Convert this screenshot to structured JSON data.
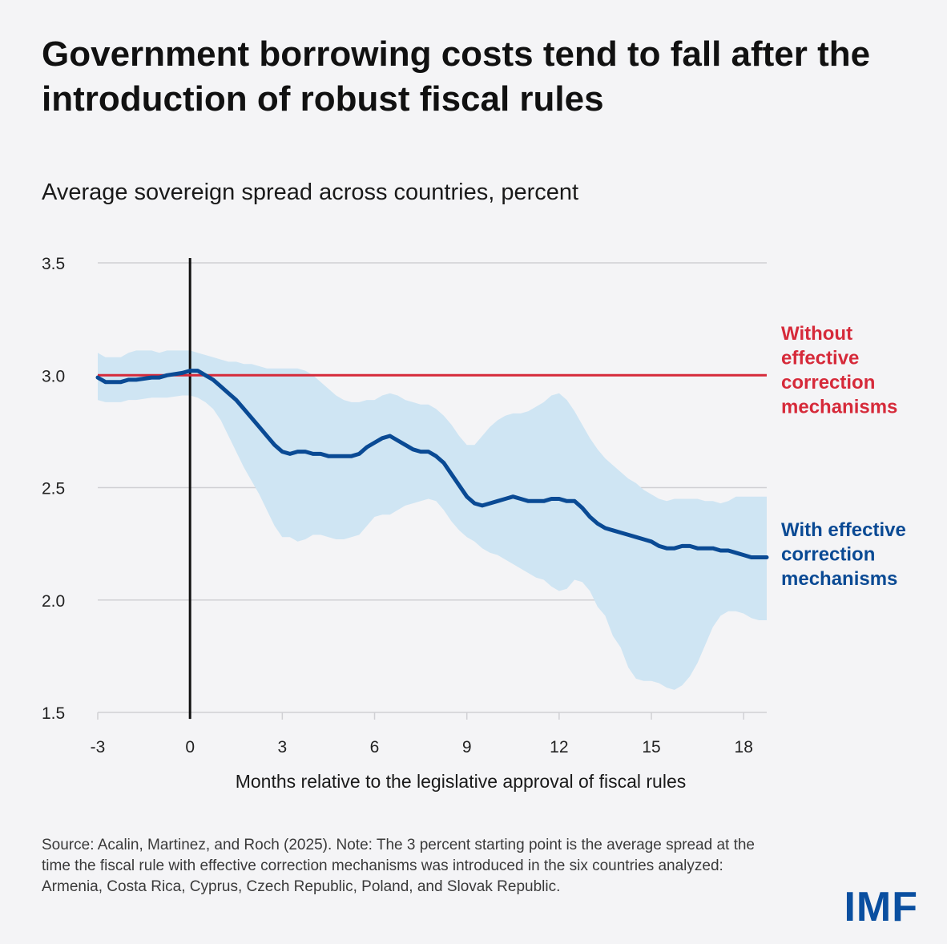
{
  "title": "Government borrowing costs tend to fall after the introduction of robust fiscal rules",
  "subtitle": "Average sovereign spread across countries, percent",
  "source": "Source: Acalin, Martinez, and Roch (2025).  Note: The 3 percent starting point is the average spread at the time the fiscal rule with effective correction mechanisms was introduced in the six countries analyzed: Armenia, Costa Rica, Cyprus, Czech Republic, Poland, and Slovak Republic.",
  "logo": "IMF",
  "colors": {
    "background": "#f4f4f6",
    "with_line": "#0a4a94",
    "band": "#cfe5f3",
    "without_line": "#d62a3a",
    "vline": "#111111",
    "grid": "#d0d0d4"
  },
  "chart_data": {
    "type": "line",
    "title": "Average sovereign spread across countries, percent",
    "xlabel": "Months relative to the legislative approval of fiscal rules",
    "ylabel": "",
    "xlim": [
      -3,
      18.75
    ],
    "ylim": [
      1.5,
      3.5
    ],
    "x_ticks": [
      -3,
      0,
      3,
      6,
      9,
      12,
      15,
      18
    ],
    "x_tick_labels": [
      "-3",
      "0",
      "3",
      "6",
      "9",
      "12",
      "15",
      "18"
    ],
    "y_ticks": [
      1.5,
      2.0,
      2.5,
      3.0,
      3.5
    ],
    "y_tick_labels": [
      "1.5",
      "2.0",
      "2.5",
      "3.0",
      "3.5"
    ],
    "vertical_line_x": 0,
    "series": [
      {
        "name": "Without effective correction mechanisms",
        "label_lines": [
          "Without",
          "effective",
          "correction",
          "mechanisms"
        ],
        "kind": "constant",
        "x": [
          -3,
          18.75
        ],
        "values": [
          3.0,
          3.0
        ]
      },
      {
        "name": "With effective correction mechanisms",
        "label_lines": [
          "With effective",
          "correction",
          "mechanisms"
        ],
        "kind": "line_with_band",
        "x": [
          -3,
          -2.75,
          -2.25,
          -2,
          -1.75,
          -1.25,
          -1,
          -0.75,
          -0.25,
          0,
          0.25,
          0.5,
          0.75,
          1,
          1.25,
          1.5,
          1.75,
          2,
          2.25,
          2.5,
          2.75,
          3,
          3.25,
          3.5,
          3.75,
          4,
          4.25,
          4.5,
          4.75,
          5,
          5.25,
          5.5,
          5.75,
          6,
          6.25,
          6.5,
          6.75,
          7,
          7.25,
          7.5,
          7.75,
          8,
          8.25,
          8.5,
          8.75,
          9,
          9.25,
          9.5,
          9.75,
          10,
          10.25,
          10.5,
          10.75,
          11,
          11.25,
          11.5,
          11.75,
          12,
          12.25,
          12.5,
          12.75,
          13,
          13.25,
          13.5,
          13.75,
          14,
          14.25,
          14.5,
          14.75,
          15,
          15.25,
          15.5,
          15.75,
          16,
          16.25,
          16.5,
          16.75,
          17,
          17.25,
          17.5,
          17.75,
          18,
          18.25,
          18.5,
          18.75
        ],
        "values": [
          2.99,
          2.97,
          2.97,
          2.98,
          2.98,
          2.99,
          2.99,
          3.0,
          3.01,
          3.02,
          3.02,
          3.0,
          2.98,
          2.95,
          2.92,
          2.89,
          2.85,
          2.81,
          2.77,
          2.73,
          2.69,
          2.66,
          2.65,
          2.66,
          2.66,
          2.65,
          2.65,
          2.64,
          2.64,
          2.64,
          2.64,
          2.65,
          2.68,
          2.7,
          2.72,
          2.73,
          2.71,
          2.69,
          2.67,
          2.66,
          2.66,
          2.64,
          2.61,
          2.56,
          2.51,
          2.46,
          2.43,
          2.42,
          2.43,
          2.44,
          2.45,
          2.46,
          2.45,
          2.44,
          2.44,
          2.44,
          2.45,
          2.45,
          2.44,
          2.44,
          2.41,
          2.37,
          2.34,
          2.32,
          2.31,
          2.3,
          2.29,
          2.28,
          2.27,
          2.26,
          2.24,
          2.23,
          2.23,
          2.24,
          2.24,
          2.23,
          2.23,
          2.23,
          2.22,
          2.22,
          2.21,
          2.2,
          2.19,
          2.19,
          2.19
        ],
        "upper": [
          3.1,
          3.08,
          3.08,
          3.1,
          3.11,
          3.11,
          3.1,
          3.11,
          3.11,
          3.11,
          3.1,
          3.09,
          3.08,
          3.07,
          3.06,
          3.06,
          3.05,
          3.05,
          3.04,
          3.03,
          3.03,
          3.03,
          3.03,
          3.03,
          3.02,
          3.0,
          2.97,
          2.94,
          2.91,
          2.89,
          2.88,
          2.88,
          2.89,
          2.89,
          2.91,
          2.92,
          2.91,
          2.89,
          2.88,
          2.87,
          2.87,
          2.85,
          2.82,
          2.78,
          2.73,
          2.69,
          2.69,
          2.73,
          2.77,
          2.8,
          2.82,
          2.83,
          2.83,
          2.84,
          2.86,
          2.88,
          2.91,
          2.92,
          2.89,
          2.84,
          2.78,
          2.72,
          2.67,
          2.63,
          2.6,
          2.57,
          2.54,
          2.52,
          2.49,
          2.47,
          2.45,
          2.44,
          2.45,
          2.45,
          2.45,
          2.45,
          2.44,
          2.44,
          2.43,
          2.44,
          2.46,
          2.46,
          2.46,
          2.46,
          2.46
        ],
        "lower": [
          2.89,
          2.88,
          2.88,
          2.89,
          2.89,
          2.9,
          2.9,
          2.9,
          2.91,
          2.91,
          2.9,
          2.88,
          2.85,
          2.8,
          2.73,
          2.66,
          2.59,
          2.53,
          2.47,
          2.4,
          2.33,
          2.28,
          2.28,
          2.26,
          2.27,
          2.29,
          2.29,
          2.28,
          2.27,
          2.27,
          2.28,
          2.29,
          2.33,
          2.37,
          2.38,
          2.38,
          2.4,
          2.42,
          2.43,
          2.44,
          2.45,
          2.44,
          2.4,
          2.35,
          2.31,
          2.28,
          2.26,
          2.23,
          2.21,
          2.2,
          2.18,
          2.16,
          2.14,
          2.12,
          2.1,
          2.09,
          2.06,
          2.04,
          2.05,
          2.09,
          2.08,
          2.04,
          1.97,
          1.93,
          1.84,
          1.79,
          1.7,
          1.65,
          1.64,
          1.64,
          1.63,
          1.61,
          1.6,
          1.62,
          1.66,
          1.72,
          1.8,
          1.88,
          1.93,
          1.95,
          1.95,
          1.94,
          1.92,
          1.91,
          1.91
        ]
      }
    ]
  }
}
